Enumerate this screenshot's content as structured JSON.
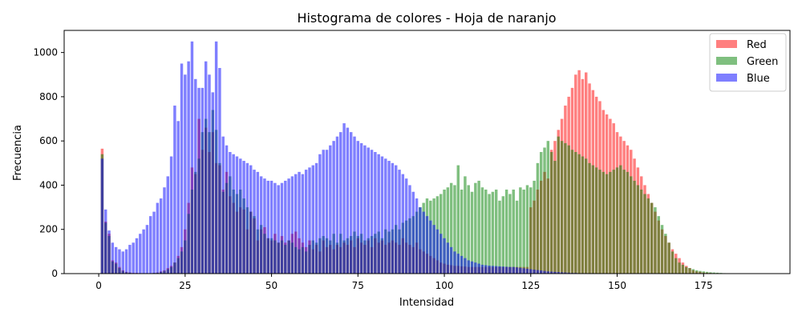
{
  "chart_data": {
    "type": "bar",
    "title": "Histograma de colores - Hoja de naranjo",
    "xlabel": "Intensidad",
    "ylabel": "Frecuencia",
    "xlim": [
      -10,
      200
    ],
    "ylim": [
      0,
      1100
    ],
    "xticks": [
      0,
      25,
      50,
      75,
      100,
      125,
      150,
      175
    ],
    "yticks": [
      0,
      200,
      400,
      600,
      800,
      1000
    ],
    "grid": false,
    "legend_position": "top-right",
    "bin_start": 1,
    "bin_width": 1,
    "series": [
      {
        "name": "Red",
        "color": "#ff0000",
        "values": [
          565,
          235,
          180,
          60,
          50,
          30,
          15,
          8,
          5,
          3,
          3,
          2,
          2,
          2,
          2,
          3,
          5,
          10,
          15,
          25,
          35,
          50,
          80,
          120,
          200,
          320,
          480,
          450,
          700,
          560,
          660,
          550,
          640,
          500,
          490,
          380,
          460,
          350,
          320,
          280,
          300,
          290,
          200,
          280,
          250,
          150,
          200,
          210,
          160,
          150,
          180,
          140,
          170,
          140,
          150,
          180,
          190,
          160,
          140,
          120,
          150,
          110,
          130,
          100,
          150,
          120,
          130,
          110,
          130,
          120,
          140,
          130,
          150,
          120,
          160,
          140,
          130,
          150,
          120,
          160,
          140,
          150,
          130,
          140,
          150,
          140,
          130,
          160,
          140,
          130,
          120,
          140,
          110,
          100,
          90,
          80,
          70,
          60,
          50,
          45,
          40,
          38,
          35,
          35,
          33,
          32,
          30,
          30,
          30,
          30,
          30,
          30,
          30,
          30,
          30,
          30,
          30,
          30,
          30,
          30,
          30,
          30,
          30,
          30,
          300,
          330,
          380,
          420,
          460,
          430,
          560,
          600,
          650,
          700,
          760,
          800,
          840,
          900,
          920,
          880,
          910,
          860,
          830,
          800,
          780,
          740,
          720,
          700,
          680,
          640,
          620,
          600,
          580,
          560,
          520,
          480,
          440,
          400,
          360,
          320,
          280,
          240,
          200,
          170,
          140,
          110,
          90,
          70,
          50,
          35,
          25,
          15,
          10,
          8,
          5,
          4,
          3,
          2,
          2,
          1,
          1,
          1,
          1,
          1,
          1,
          0
        ]
      },
      {
        "name": "Green",
        "color": "#008000",
        "values": [
          540,
          230,
          170,
          55,
          45,
          25,
          12,
          6,
          4,
          2,
          2,
          2,
          2,
          2,
          2,
          3,
          4,
          8,
          12,
          20,
          30,
          50,
          70,
          100,
          150,
          270,
          380,
          460,
          520,
          640,
          700,
          640,
          740,
          650,
          500,
          370,
          410,
          440,
          380,
          360,
          380,
          340,
          300,
          280,
          260,
          200,
          220,
          180,
          160,
          160,
          150,
          140,
          150,
          130,
          150,
          140,
          120,
          110,
          120,
          100,
          130,
          150,
          140,
          160,
          170,
          160,
          150,
          180,
          140,
          180,
          150,
          160,
          170,
          190,
          170,
          180,
          150,
          160,
          170,
          180,
          190,
          160,
          200,
          190,
          200,
          220,
          200,
          230,
          240,
          250,
          260,
          280,
          300,
          320,
          340,
          330,
          340,
          350,
          360,
          380,
          390,
          410,
          400,
          490,
          380,
          440,
          400,
          370,
          410,
          420,
          390,
          380,
          360,
          370,
          380,
          330,
          350,
          380,
          360,
          380,
          330,
          390,
          380,
          400,
          390,
          420,
          500,
          550,
          570,
          600,
          550,
          510,
          620,
          600,
          590,
          580,
          560,
          550,
          540,
          530,
          520,
          500,
          490,
          480,
          470,
          460,
          450,
          460,
          470,
          480,
          490,
          470,
          460,
          440,
          420,
          400,
          380,
          360,
          340,
          320,
          300,
          260,
          220,
          180,
          140,
          100,
          70,
          50,
          40,
          30,
          25,
          20,
          15,
          12,
          10,
          8,
          6,
          5,
          4,
          3,
          2,
          1,
          1
        ]
      },
      {
        "name": "Blue",
        "color": "#0000ff",
        "values": [
          520,
          290,
          195,
          140,
          120,
          110,
          100,
          110,
          130,
          140,
          160,
          180,
          200,
          220,
          260,
          280,
          320,
          340,
          390,
          440,
          530,
          760,
          690,
          950,
          900,
          960,
          1050,
          880,
          840,
          840,
          960,
          900,
          820,
          1050,
          930,
          620,
          580,
          550,
          540,
          530,
          520,
          510,
          500,
          490,
          470,
          460,
          440,
          430,
          420,
          420,
          410,
          400,
          410,
          420,
          430,
          440,
          450,
          460,
          450,
          470,
          480,
          490,
          500,
          540,
          560,
          560,
          580,
          600,
          620,
          640,
          680,
          660,
          640,
          620,
          600,
          590,
          580,
          570,
          560,
          550,
          540,
          530,
          520,
          510,
          500,
          490,
          470,
          450,
          430,
          400,
          370,
          340,
          300,
          280,
          260,
          240,
          220,
          200,
          180,
          160,
          140,
          120,
          100,
          90,
          80,
          70,
          60,
          55,
          50,
          45,
          40,
          38,
          36,
          35,
          34,
          33,
          32,
          31,
          30,
          30,
          28,
          26,
          24,
          22,
          20,
          18,
          16,
          14,
          12,
          10,
          9,
          8,
          7,
          6,
          5,
          4,
          3,
          3,
          2,
          2,
          2,
          2,
          2,
          1,
          1,
          1,
          1,
          1,
          1,
          1,
          1,
          1,
          1,
          1,
          1,
          1,
          1,
          1,
          1,
          1,
          1,
          1,
          1,
          1,
          1,
          1,
          1,
          1,
          1,
          1,
          0,
          0,
          0,
          0,
          0,
          0,
          0,
          0,
          0,
          0,
          0,
          0,
          0,
          0,
          0,
          0,
          0,
          0
        ]
      }
    ]
  }
}
